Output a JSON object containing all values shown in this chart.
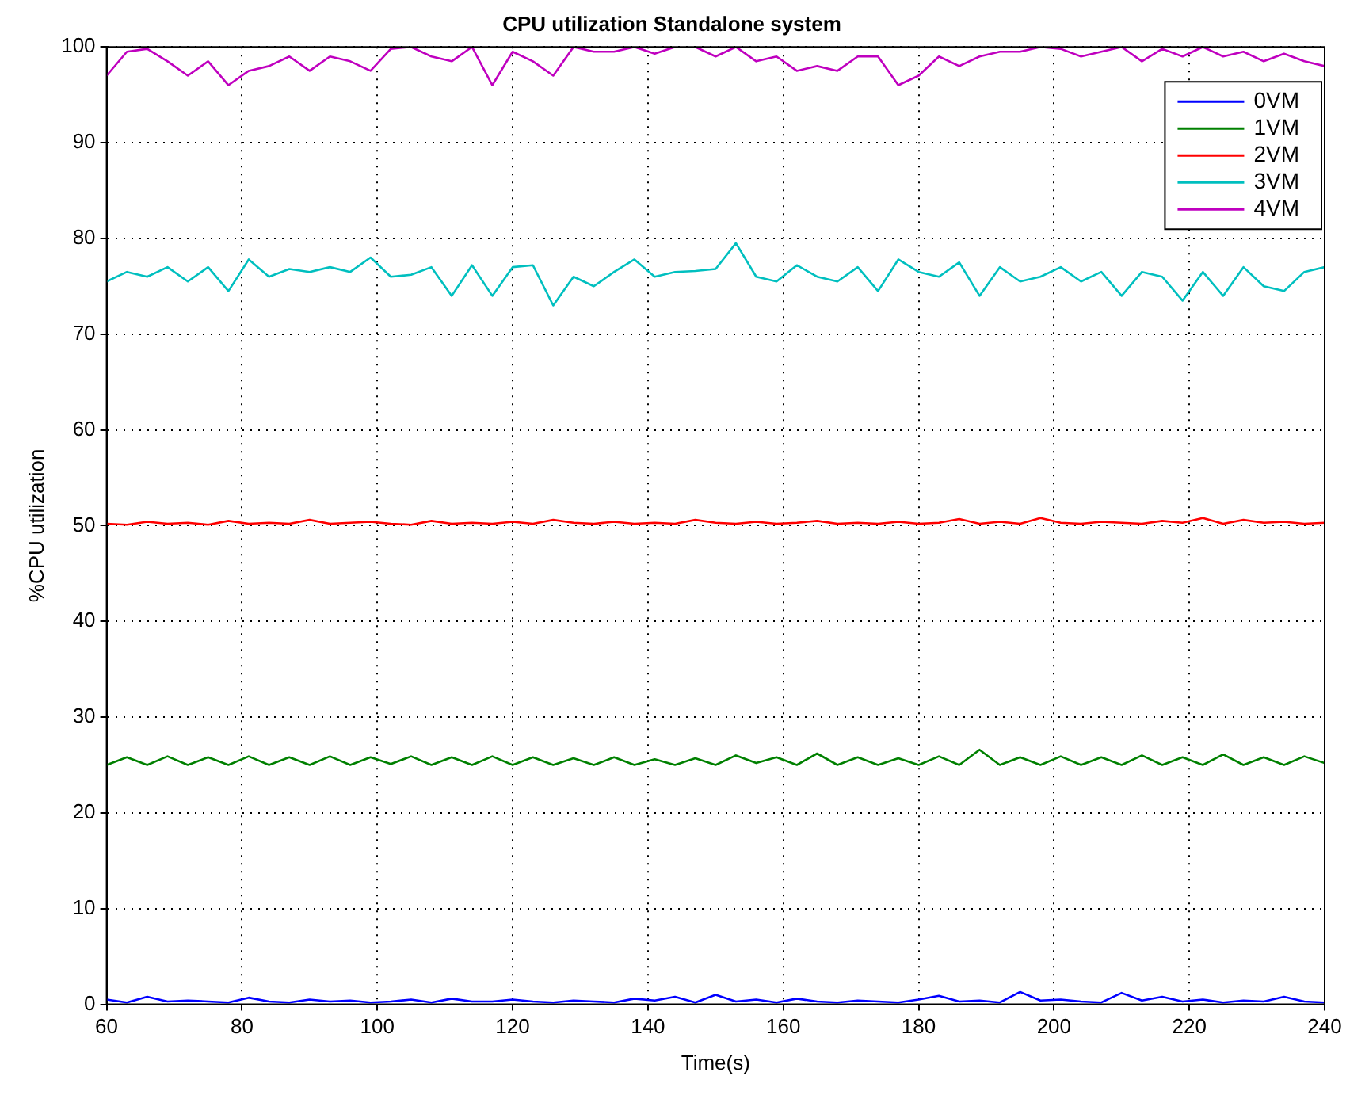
{
  "chart_data": {
    "type": "line",
    "title": "CPU utilization Standalone system",
    "xlabel": "Time(s)",
    "ylabel": "%CPU utilization",
    "x": [
      60,
      63,
      66,
      69,
      72,
      75,
      78,
      81,
      84,
      87,
      90,
      93,
      96,
      99,
      102,
      105,
      108,
      111,
      114,
      117,
      120,
      123,
      126,
      129,
      132,
      135,
      138,
      141,
      144,
      147,
      150,
      153,
      156,
      159,
      162,
      165,
      168,
      171,
      174,
      177,
      180,
      183,
      186,
      189,
      192,
      195,
      198,
      201,
      204,
      207,
      210,
      213,
      216,
      219,
      222,
      225,
      228,
      231,
      234,
      237,
      240
    ],
    "series": [
      {
        "name": "0VM",
        "color": "#0000ff",
        "values": [
          0.5,
          0.2,
          0.8,
          0.3,
          0.4,
          0.3,
          0.2,
          0.7,
          0.3,
          0.2,
          0.5,
          0.3,
          0.4,
          0.2,
          0.3,
          0.5,
          0.2,
          0.6,
          0.3,
          0.3,
          0.5,
          0.3,
          0.2,
          0.4,
          0.3,
          0.2,
          0.6,
          0.4,
          0.8,
          0.2,
          1.0,
          0.3,
          0.5,
          0.2,
          0.6,
          0.3,
          0.2,
          0.4,
          0.3,
          0.2,
          0.5,
          0.9,
          0.3,
          0.4,
          0.2,
          1.3,
          0.4,
          0.5,
          0.3,
          0.2,
          1.2,
          0.4,
          0.8,
          0.3,
          0.5,
          0.2,
          0.4,
          0.3,
          0.8,
          0.3,
          0.2
        ]
      },
      {
        "name": "1VM",
        "color": "#008000",
        "values": [
          25,
          25.8,
          25,
          25.9,
          25,
          25.8,
          25,
          25.9,
          25,
          25.8,
          25,
          25.9,
          25,
          25.8,
          25.1,
          25.9,
          25,
          25.8,
          25,
          25.9,
          25,
          25.8,
          25,
          25.7,
          25,
          25.8,
          25,
          25.6,
          25,
          25.7,
          25,
          26,
          25.2,
          25.8,
          25,
          26.2,
          25,
          25.8,
          25,
          25.7,
          25,
          25.9,
          25,
          26.6,
          25,
          25.8,
          25,
          25.9,
          25,
          25.8,
          25,
          26,
          25,
          25.8,
          25,
          26.1,
          25,
          25.8,
          25,
          25.9,
          25.2
        ]
      },
      {
        "name": "2VM",
        "color": "#ff0000",
        "values": [
          50.2,
          50.1,
          50.4,
          50.2,
          50.3,
          50.1,
          50.5,
          50.2,
          50.3,
          50.2,
          50.6,
          50.2,
          50.3,
          50.4,
          50.2,
          50.1,
          50.5,
          50.2,
          50.3,
          50.2,
          50.4,
          50.2,
          50.6,
          50.3,
          50.2,
          50.4,
          50.2,
          50.3,
          50.2,
          50.6,
          50.3,
          50.2,
          50.4,
          50.2,
          50.3,
          50.5,
          50.2,
          50.3,
          50.2,
          50.4,
          50.2,
          50.3,
          50.7,
          50.2,
          50.4,
          50.2,
          50.8,
          50.3,
          50.2,
          50.4,
          50.3,
          50.2,
          50.5,
          50.3,
          50.8,
          50.2,
          50.6,
          50.3,
          50.4,
          50.2,
          50.3
        ]
      },
      {
        "name": "3VM",
        "color": "#00bfbf",
        "values": [
          75.5,
          76.5,
          76,
          77,
          75.5,
          77,
          74.5,
          77.8,
          76,
          76.8,
          76.5,
          77,
          76.5,
          78,
          76,
          76.2,
          77,
          74,
          77.2,
          74,
          77,
          77.2,
          73,
          76,
          75,
          76.5,
          77.8,
          76,
          76.5,
          76.6,
          76.8,
          79.5,
          76,
          75.5,
          77.2,
          76,
          75.5,
          77,
          74.5,
          77.8,
          76.5,
          76,
          77.5,
          74,
          77,
          75.5,
          76,
          77,
          75.5,
          76.5,
          74,
          76.5,
          76,
          73.5,
          76.5,
          74,
          77,
          75,
          74.5,
          76.5,
          77
        ]
      },
      {
        "name": "4VM",
        "color": "#bf00bf",
        "values": [
          97,
          99.5,
          99.8,
          98.5,
          97,
          98.5,
          96,
          97.5,
          98,
          99,
          97.5,
          99,
          98.5,
          97.5,
          99.8,
          100,
          99,
          98.5,
          100,
          96,
          99.5,
          98.5,
          97,
          100,
          99.5,
          99.5,
          100,
          99.3,
          100,
          100,
          99,
          100,
          98.5,
          99,
          97.5,
          98,
          97.5,
          99,
          99,
          96,
          97,
          99,
          98,
          99,
          99.5,
          99.5,
          100,
          99.8,
          99,
          99.5,
          100,
          98.5,
          99.8,
          99,
          100,
          99,
          99.5,
          98.5,
          99.3,
          98.5,
          98
        ]
      }
    ],
    "xlim": [
      60,
      240
    ],
    "xticks": [
      60,
      80,
      100,
      120,
      140,
      160,
      180,
      200,
      220,
      240
    ],
    "ylim": [
      0,
      100
    ],
    "yticks": [
      0,
      10,
      20,
      30,
      40,
      50,
      60,
      70,
      80,
      90,
      100
    ],
    "grid": true,
    "legend": "top right",
    "marker": "none",
    "line_style": "solid"
  }
}
